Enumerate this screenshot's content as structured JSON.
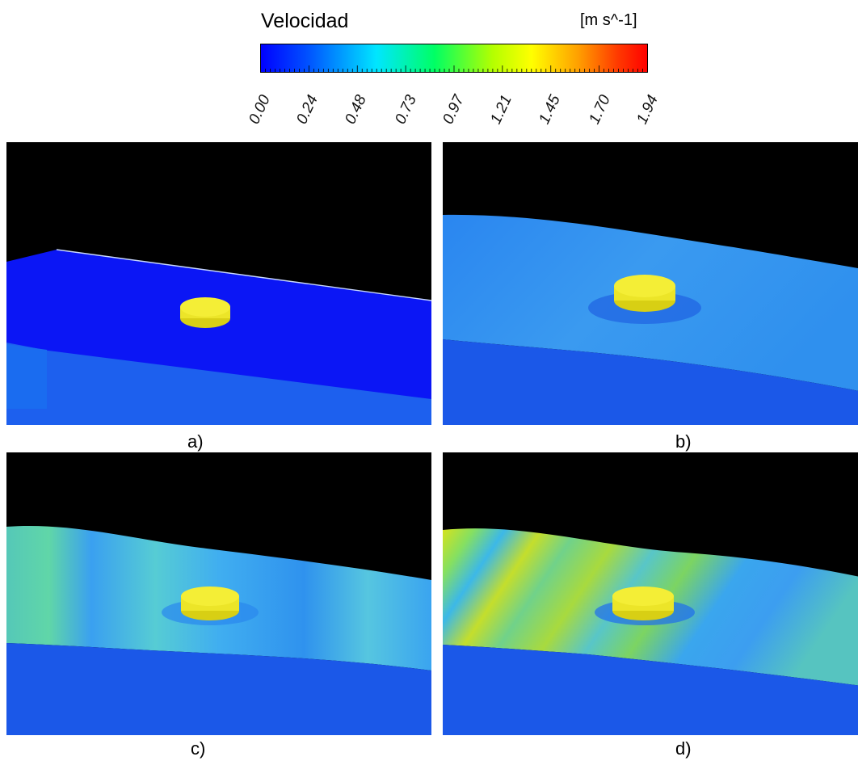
{
  "colorbar": {
    "title": "Velocidad",
    "unit": "[m s^-1]",
    "ticks": [
      "0.00",
      "0.24",
      "0.48",
      "0.73",
      "0.97",
      "1.21",
      "1.45",
      "1.70",
      "1.94"
    ],
    "min": 0.0,
    "max": 1.94,
    "colors": [
      "#0000ff",
      "#0064ff",
      "#00e6ff",
      "#00ff6e",
      "#c8ff00",
      "#ffff00",
      "#ffa000",
      "#ff2800",
      "#ff0000"
    ]
  },
  "panels": [
    {
      "label": "a)"
    },
    {
      "label": "b)"
    },
    {
      "label": "c)"
    },
    {
      "label": "d)"
    }
  ]
}
